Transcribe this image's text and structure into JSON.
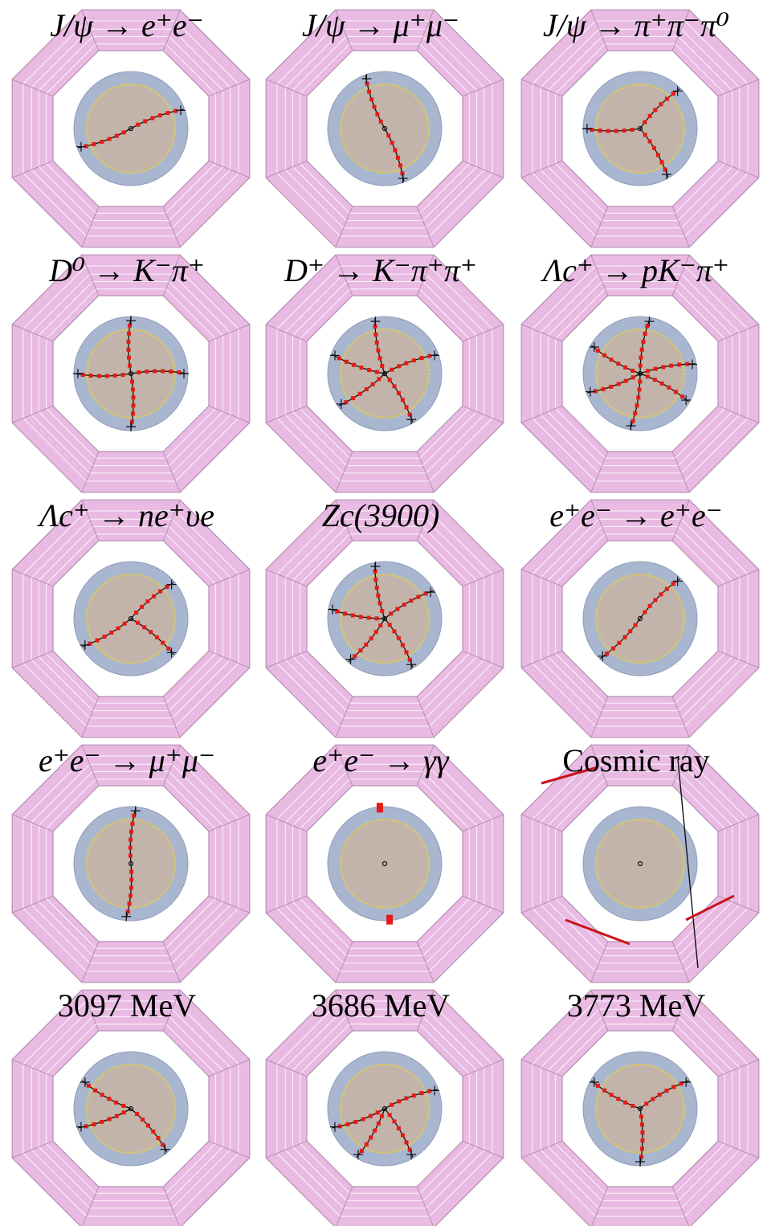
{
  "figure": {
    "panels": [
      {
        "id": "jpsi-ee",
        "label": "J/ψ → e⁺e⁻",
        "math": true,
        "ang": [
          200,
          20
        ],
        "showers": []
      },
      {
        "id": "jpsi-mumu",
        "label": "J/ψ → μ⁺μ⁻",
        "math": true,
        "ang": [
          110,
          290
        ],
        "showers": []
      },
      {
        "id": "jpsi-pipipi0",
        "label": "J/ψ → π⁺π⁻π⁰",
        "math": true,
        "ang": [
          180,
          300,
          45
        ],
        "showers": []
      },
      {
        "id": "d0-kpi",
        "label": "D⁰ → K⁻π⁺",
        "math": true,
        "ang": [
          0,
          90,
          180,
          270
        ],
        "showers": []
      },
      {
        "id": "dplus-kpipi",
        "label": "D⁺ → K⁻π⁺π⁺",
        "math": true,
        "ang": [
          20,
          100,
          160,
          215,
          300
        ],
        "showers": []
      },
      {
        "id": "lambdac-pkpi",
        "label": "Λc⁺ → pK⁻π⁺",
        "math": true,
        "ang": [
          10,
          80,
          150,
          200,
          260,
          330
        ],
        "showers": []
      },
      {
        "id": "lambdac-nenu",
        "label": "Λc⁺ → ne⁺υe",
        "math": true,
        "ang": [
          40,
          210,
          320
        ],
        "showers": []
      },
      {
        "id": "zc3900",
        "label": "Zc(3900)",
        "math": true,
        "ang": [
          30,
          100,
          170,
          230,
          300
        ],
        "showers": []
      },
      {
        "id": "ee-ee",
        "label": "e⁺e⁻ → e⁺e⁻",
        "math": true,
        "ang": [
          45,
          225
        ],
        "showers": []
      },
      {
        "id": "ee-mumu",
        "label": "e⁺e⁻ → μ⁺μ⁻",
        "math": true,
        "ang": [
          85,
          265
        ],
        "showers": []
      },
      {
        "id": "ee-gammagamma",
        "label": "e⁺e⁻ → γγ",
        "math": true,
        "ang": [],
        "showers": [
          95,
          275
        ]
      },
      {
        "id": "cosmic-ray",
        "label": "Cosmic ray",
        "math": false,
        "ang": [],
        "showers": []
      },
      {
        "id": "e3097",
        "label": "3097 MeV",
        "math": false,
        "ang": [
          150,
          200,
          310
        ],
        "showers": []
      },
      {
        "id": "e3686",
        "label": "3686 MeV",
        "math": false,
        "ang": [
          20,
          200,
          240,
          300
        ],
        "showers": []
      },
      {
        "id": "e3773",
        "label": "3773 MeV",
        "math": false,
        "ang": [
          30,
          150,
          270
        ],
        "showers": []
      }
    ],
    "colors": {
      "muon_frame": "#e9bbe3",
      "muon_edge": "#b58fb3",
      "emc": "#a9b6d0",
      "mdc": "#c2b4aa",
      "mdc_ring": "#d9cf5a",
      "hits": "#e41b14",
      "tracks": "#111111",
      "muon_hits": "#c8141c"
    }
  }
}
